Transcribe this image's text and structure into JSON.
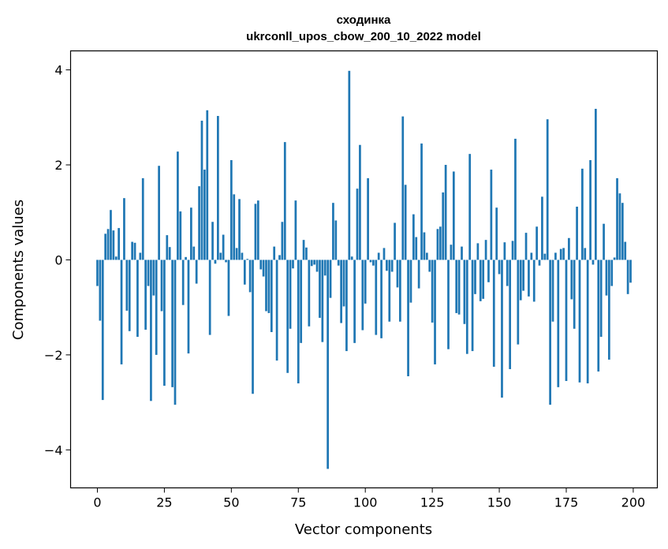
{
  "chart_data": {
    "type": "bar",
    "title": "сходинка",
    "subtitle": "ukrconll_upos_cbow_200_10_2022 model",
    "xlabel": "Vector components",
    "ylabel": "Components values",
    "xlim": [
      -10,
      209
    ],
    "ylim": [
      -4.8,
      4.4
    ],
    "x_ticks": [
      0,
      25,
      50,
      75,
      100,
      125,
      150,
      175,
      200
    ],
    "y_ticks": [
      -4,
      -2,
      0,
      2,
      4
    ],
    "x_tick_labels": [
      "0",
      "25",
      "50",
      "75",
      "100",
      "125",
      "150",
      "175",
      "200"
    ],
    "y_tick_labels": [
      "−4",
      "−2",
      "0",
      "2",
      "4"
    ],
    "grid": false,
    "legend": "none",
    "bar_color": "#1f77b4",
    "x": [
      0,
      1,
      2,
      3,
      4,
      5,
      6,
      7,
      8,
      9,
      10,
      11,
      12,
      13,
      14,
      15,
      16,
      17,
      18,
      19,
      20,
      21,
      22,
      23,
      24,
      25,
      26,
      27,
      28,
      29,
      30,
      31,
      32,
      33,
      34,
      35,
      36,
      37,
      38,
      39,
      40,
      41,
      42,
      43,
      44,
      45,
      46,
      47,
      48,
      49,
      50,
      51,
      52,
      53,
      54,
      55,
      56,
      57,
      58,
      59,
      60,
      61,
      62,
      63,
      64,
      65,
      66,
      67,
      68,
      69,
      70,
      71,
      72,
      73,
      74,
      75,
      76,
      77,
      78,
      79,
      80,
      81,
      82,
      83,
      84,
      85,
      86,
      87,
      88,
      89,
      90,
      91,
      92,
      93,
      94,
      95,
      96,
      97,
      98,
      99,
      100,
      101,
      102,
      103,
      104,
      105,
      106,
      107,
      108,
      109,
      110,
      111,
      112,
      113,
      114,
      115,
      116,
      117,
      118,
      119,
      120,
      121,
      122,
      123,
      124,
      125,
      126,
      127,
      128,
      129,
      130,
      131,
      132,
      133,
      134,
      135,
      136,
      137,
      138,
      139,
      140,
      141,
      142,
      143,
      144,
      145,
      146,
      147,
      148,
      149,
      150,
      151,
      152,
      153,
      154,
      155,
      156,
      157,
      158,
      159,
      160,
      161,
      162,
      163,
      164,
      165,
      166,
      167,
      168,
      169,
      170,
      171,
      172,
      173,
      174,
      175,
      176,
      177,
      178,
      179,
      180,
      181,
      182,
      183,
      184,
      185,
      186,
      187,
      188,
      189,
      190,
      191,
      192,
      193,
      194,
      195,
      196,
      197,
      198,
      199
    ],
    "values": [
      -0.55,
      -1.28,
      -2.95,
      0.55,
      0.65,
      1.05,
      0.62,
      0.07,
      0.67,
      -2.2,
      1.3,
      -1.07,
      -1.5,
      0.38,
      0.36,
      -1.62,
      0.15,
      1.72,
      -1.47,
      -0.55,
      -2.97,
      -0.75,
      -2.0,
      1.98,
      -1.08,
      -2.65,
      0.52,
      0.27,
      -2.68,
      -3.05,
      2.28,
      1.02,
      -0.95,
      0.06,
      -1.97,
      1.1,
      0.28,
      -0.5,
      1.55,
      2.93,
      1.9,
      3.15,
      -1.58,
      0.8,
      -0.08,
      3.03,
      0.15,
      0.53,
      -0.05,
      -1.18,
      2.1,
      1.38,
      0.25,
      1.28,
      0.15,
      -0.52,
      0.02,
      -0.68,
      -2.82,
      1.18,
      1.25,
      -0.2,
      -0.35,
      -1.08,
      -1.12,
      -1.52,
      0.28,
      -2.12,
      0.1,
      0.8,
      2.48,
      -2.38,
      -1.45,
      -0.18,
      1.25,
      -2.6,
      -1.75,
      0.42,
      0.26,
      -1.4,
      -0.13,
      -0.1,
      -0.25,
      -1.22,
      -1.73,
      -0.33,
      -4.4,
      -0.8,
      1.2,
      0.83,
      -0.12,
      -1.33,
      -0.98,
      -1.92,
      3.98,
      0.07,
      -1.75,
      1.5,
      2.42,
      -1.48,
      -0.92,
      1.72,
      -0.05,
      -0.12,
      -1.58,
      0.15,
      -1.65,
      0.25,
      -0.23,
      -1.3,
      -0.25,
      0.78,
      -0.58,
      -1.3,
      3.02,
      1.58,
      -2.45,
      -0.9,
      0.96,
      0.48,
      -0.6,
      2.45,
      0.58,
      0.15,
      -0.25,
      -1.32,
      -2.2,
      0.65,
      0.7,
      1.42,
      2.0,
      -1.88,
      0.32,
      1.86,
      -1.12,
      -1.15,
      0.28,
      -1.35,
      -1.98,
      2.23,
      -1.92,
      -0.72,
      0.35,
      -0.87,
      -0.82,
      0.42,
      -0.47,
      1.9,
      -2.25,
      1.1,
      -0.3,
      -2.9,
      0.37,
      -0.55,
      -2.3,
      0.4,
      2.55,
      -1.78,
      -0.85,
      -0.65,
      0.57,
      -0.77,
      0.15,
      -0.88,
      0.7,
      -0.12,
      1.33,
      0.13,
      2.96,
      -3.05,
      -1.3,
      0.15,
      -2.68,
      0.23,
      0.25,
      -2.55,
      0.46,
      -0.83,
      -1.45,
      1.12,
      -2.58,
      1.92,
      0.25,
      -2.6,
      2.1,
      -0.1,
      3.18,
      -2.35,
      -1.62,
      0.76,
      -0.75,
      -2.1,
      -0.55,
      0.05,
      1.72,
      1.4,
      1.2,
      0.38,
      -0.72,
      -0.48
    ]
  }
}
